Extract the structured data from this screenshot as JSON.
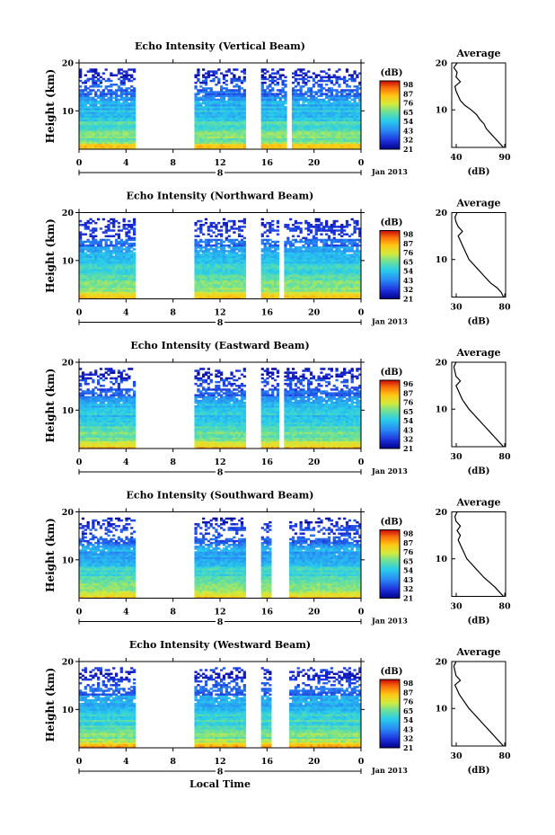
{
  "chart_data": [
    {
      "type": "heatmap",
      "title": "Echo Intensity (Vertical Beam)",
      "ylabel": "Height (km)",
      "ylim": [
        2,
        20
      ],
      "yticks": [
        "20",
        "10"
      ],
      "xticks": [
        "0",
        "4",
        "8",
        "12",
        "16",
        "20",
        "0"
      ],
      "xlim": [
        0,
        24
      ],
      "day_marker": "8",
      "date_label": "Jan 2013",
      "colorbar": {
        "unit": "(dB)",
        "labels": [
          "98",
          "87",
          "76",
          "65",
          "54",
          "43",
          "32",
          "21"
        ]
      },
      "data_gaps_hours": [
        [
          4.8,
          9.8
        ],
        [
          14.1,
          15.5
        ],
        [
          17.6,
          18.0
        ]
      ],
      "profile": {
        "title": "Average",
        "xlabel": "(dB)",
        "xticks": [
          "40",
          "90"
        ],
        "xlim": [
          40,
          90
        ],
        "yticks": [
          "20",
          "10"
        ],
        "height_km": [
          2,
          3,
          4,
          5,
          6,
          7,
          8,
          9,
          10,
          11,
          12,
          13,
          14,
          15,
          16,
          17,
          18,
          19,
          20
        ],
        "value_db": [
          88,
          84,
          80,
          76,
          72,
          70,
          66,
          63,
          58,
          52,
          48,
          46,
          44,
          43,
          48,
          44,
          45,
          42,
          45
        ]
      }
    },
    {
      "type": "heatmap",
      "title": "Echo Intensity (Northward Beam)",
      "ylabel": "Height (km)",
      "ylim": [
        2,
        20
      ],
      "yticks": [
        "20",
        "10"
      ],
      "xticks": [
        "0",
        "4",
        "8",
        "12",
        "16",
        "20",
        "0"
      ],
      "xlim": [
        0,
        24
      ],
      "day_marker": "8",
      "date_label": "Jan 2013",
      "colorbar": {
        "unit": "(dB)",
        "labels": [
          "98",
          "87",
          "76",
          "65",
          "54",
          "43",
          "32",
          "21"
        ]
      },
      "data_gaps_hours": [
        [
          4.8,
          9.8
        ],
        [
          14.1,
          15.5
        ],
        [
          17.0,
          17.4
        ]
      ],
      "profile": {
        "title": "Average",
        "xlabel": "(dB)",
        "xticks": [
          "30",
          "80"
        ],
        "xlim": [
          30,
          80
        ],
        "yticks": [
          "20",
          "10"
        ],
        "height_km": [
          2,
          3,
          4,
          5,
          6,
          7,
          8,
          9,
          10,
          11,
          12,
          13,
          14,
          15,
          16,
          17,
          18,
          19,
          20
        ],
        "value_db": [
          78,
          76,
          72,
          66,
          62,
          58,
          54,
          50,
          46,
          44,
          42,
          40,
          38,
          36,
          40,
          36,
          34,
          33,
          35
        ]
      }
    },
    {
      "type": "heatmap",
      "title": "Echo Intensity (Eastward Beam)",
      "ylabel": "Height (km)",
      "ylim": [
        2,
        20
      ],
      "yticks": [
        "20",
        "10"
      ],
      "xticks": [
        "0",
        "4",
        "8",
        "12",
        "16",
        "20",
        "0"
      ],
      "xlim": [
        0,
        24
      ],
      "day_marker": "8",
      "date_label": "Jan 2013",
      "colorbar": {
        "unit": "(dB)",
        "labels": [
          "96",
          "87",
          "76",
          "65",
          "54",
          "43",
          "32",
          "21"
        ]
      },
      "data_gaps_hours": [
        [
          4.8,
          9.8
        ],
        [
          14.1,
          15.5
        ],
        [
          17.0,
          17.4
        ]
      ],
      "profile": {
        "title": "Average",
        "xlabel": "(dB)",
        "xticks": [
          "30",
          "80"
        ],
        "xlim": [
          30,
          80
        ],
        "yticks": [
          "20",
          "10"
        ],
        "height_km": [
          2,
          3,
          4,
          5,
          6,
          7,
          8,
          9,
          10,
          11,
          12,
          13,
          14,
          15,
          16,
          17,
          18,
          19,
          20
        ],
        "value_db": [
          78,
          74,
          70,
          66,
          62,
          58,
          54,
          50,
          46,
          43,
          40,
          38,
          36,
          34,
          38,
          34,
          33,
          32,
          34
        ]
      }
    },
    {
      "type": "heatmap",
      "title": "Echo Intensity (Southward Beam)",
      "ylabel": "Height (km)",
      "ylim": [
        2,
        20
      ],
      "yticks": [
        "20",
        "10"
      ],
      "xticks": [
        "0",
        "4",
        "8",
        "12",
        "16",
        "20",
        "0"
      ],
      "xlim": [
        0,
        24
      ],
      "day_marker": "8",
      "date_label": "Jan 2013",
      "colorbar": {
        "unit": "(dB)",
        "labels": [
          "98",
          "87",
          "76",
          "65",
          "54",
          "43",
          "32",
          "21"
        ]
      },
      "data_gaps_hours": [
        [
          4.8,
          9.8
        ],
        [
          14.1,
          15.5
        ],
        [
          16.3,
          17.8
        ]
      ],
      "profile": {
        "title": "Average",
        "xlabel": "(dB)",
        "xticks": [
          "30",
          "80"
        ],
        "xlim": [
          30,
          80
        ],
        "yticks": [
          "20",
          "10"
        ],
        "height_km": [
          2,
          3,
          4,
          5,
          6,
          7,
          8,
          9,
          10,
          11,
          12,
          13,
          14,
          15,
          16,
          17,
          18,
          19,
          20
        ],
        "value_db": [
          78,
          74,
          70,
          65,
          60,
          56,
          52,
          48,
          44,
          42,
          40,
          38,
          36,
          38,
          35,
          38,
          34,
          33,
          35
        ]
      }
    },
    {
      "type": "heatmap",
      "title": "Echo Intensity (Westward Beam)",
      "ylabel": "Height (km)",
      "ylim": [
        2,
        20
      ],
      "yticks": [
        "20",
        "10"
      ],
      "xticks": [
        "0",
        "4",
        "8",
        "12",
        "16",
        "20",
        "0"
      ],
      "xlim": [
        0,
        24
      ],
      "day_marker": "8",
      "date_label": "Jan 2013",
      "xlabel": "Local Time",
      "colorbar": {
        "unit": "(dB)",
        "labels": [
          "98",
          "87",
          "76",
          "65",
          "54",
          "43",
          "32",
          "21"
        ]
      },
      "data_gaps_hours": [
        [
          4.8,
          9.8
        ],
        [
          14.1,
          15.5
        ],
        [
          16.3,
          17.8
        ]
      ],
      "profile": {
        "title": "Average",
        "xlabel": "(dB)",
        "xticks": [
          "30",
          "80"
        ],
        "xlim": [
          30,
          80
        ],
        "yticks": [
          "20",
          "10"
        ],
        "height_km": [
          2,
          3,
          4,
          5,
          6,
          7,
          8,
          9,
          10,
          11,
          12,
          13,
          14,
          15,
          16,
          17,
          18,
          19,
          20
        ],
        "value_db": [
          78,
          74,
          70,
          66,
          62,
          58,
          54,
          50,
          46,
          43,
          40,
          37,
          35,
          33,
          38,
          34,
          33,
          32,
          34
        ]
      }
    }
  ]
}
